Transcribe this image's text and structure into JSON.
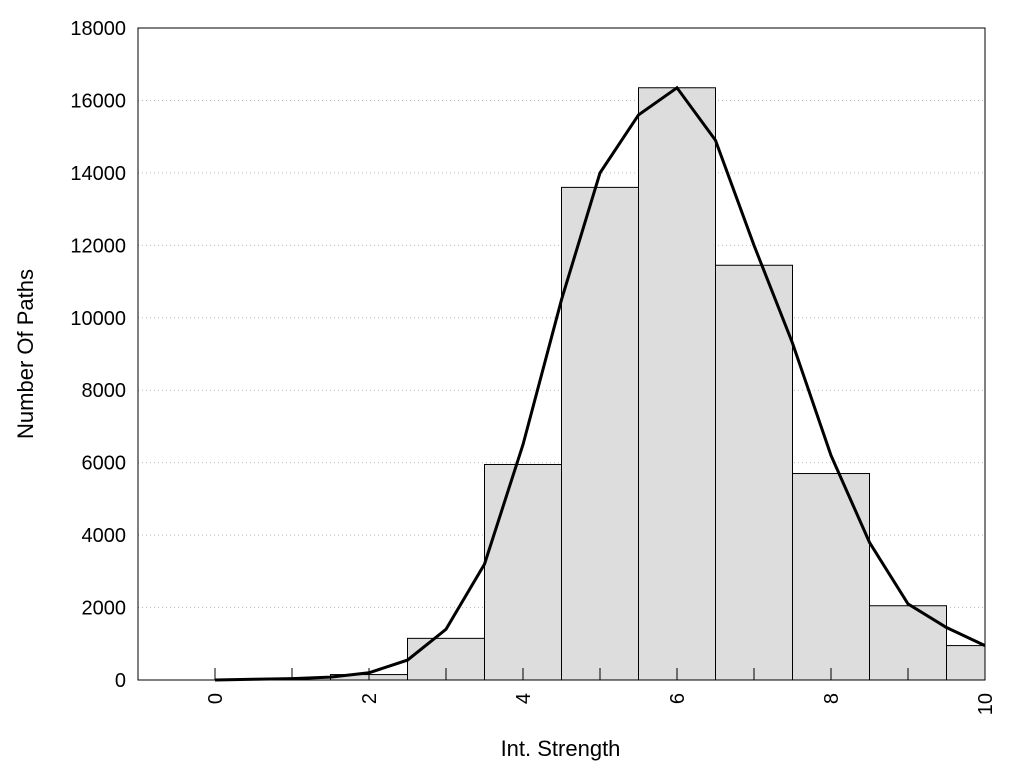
{
  "chart_data": {
    "type": "bar",
    "title": "",
    "xlabel": "Int. Strength",
    "ylabel": "Number Of Paths",
    "xlim": [
      -1,
      10
    ],
    "ylim": [
      0,
      18000
    ],
    "x_ticks": [
      0,
      2,
      4,
      6,
      8,
      10
    ],
    "y_ticks": [
      0,
      2000,
      4000,
      6000,
      8000,
      10000,
      12000,
      14000,
      16000,
      18000
    ],
    "grid": "horizontal dotted",
    "legend": "none",
    "bar_color": "#dddddd",
    "bar_edge_color": "#000000",
    "line_color": "#000000",
    "bar_width": 1,
    "x": [
      0,
      1,
      2,
      3,
      4,
      5,
      6,
      7,
      8,
      9,
      10
    ],
    "values": [
      0,
      0,
      150,
      1150,
      5950,
      13600,
      16350,
      11450,
      5700,
      2050,
      950
    ],
    "density_line": {
      "x": [
        0,
        0.5,
        1,
        1.5,
        2,
        2.5,
        3,
        3.5,
        4,
        4.5,
        5,
        5.5,
        6,
        6.5,
        7,
        7.5,
        8,
        8.5,
        9,
        9.5,
        10
      ],
      "y": [
        0,
        20,
        40,
        80,
        200,
        550,
        1400,
        3200,
        6500,
        10500,
        14000,
        15600,
        16350,
        14900,
        12000,
        9300,
        6200,
        3800,
        2100,
        1450,
        950
      ]
    }
  }
}
